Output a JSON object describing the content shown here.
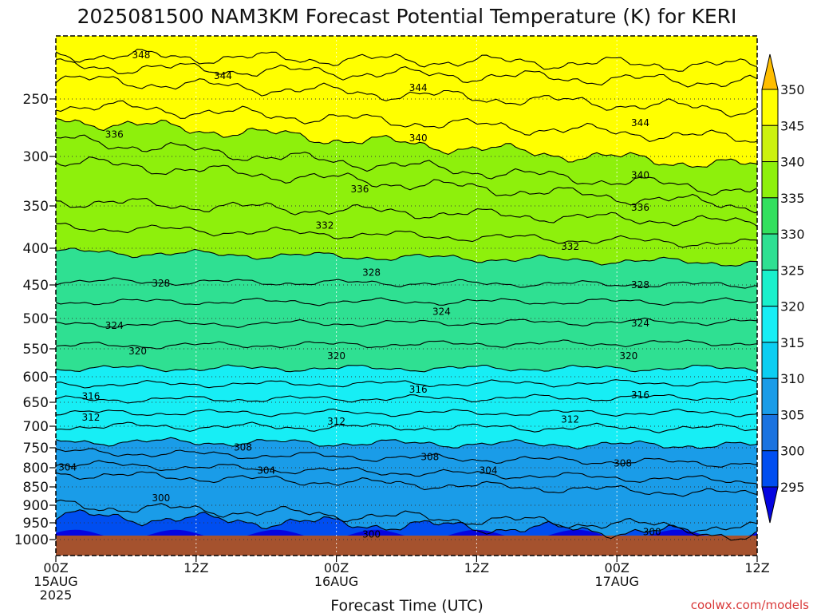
{
  "chart_data": {
    "type": "contour",
    "title": "2025081500 NAM3KM Forecast Potential Temperature (K) for KERI",
    "xlabel": "Forecast Time (UTC)",
    "credit": "coolwx.com/models",
    "y_axis": {
      "quantity": "pressure (hPa)",
      "range": [
        1000,
        200
      ],
      "ticks": [
        250,
        300,
        350,
        400,
        450,
        500,
        550,
        600,
        650,
        700,
        750,
        800,
        850,
        900,
        950,
        1000
      ],
      "tick_labels": [
        "250",
        "300",
        "350",
        "400",
        "450",
        "500",
        "550",
        "600",
        "650",
        "700",
        "750",
        "800",
        "850",
        "900",
        "950",
        "1000"
      ]
    },
    "x_axis": {
      "range_hours": [
        0,
        60
      ],
      "ticks": [
        {
          "hour": 0,
          "lines": [
            "00Z",
            "15AUG",
            "2025"
          ]
        },
        {
          "hour": 12,
          "lines": [
            "12Z"
          ]
        },
        {
          "hour": 24,
          "lines": [
            "00Z",
            "16AUG"
          ]
        },
        {
          "hour": 36,
          "lines": [
            "12Z"
          ]
        },
        {
          "hour": 48,
          "lines": [
            "00Z",
            "17AUG"
          ]
        },
        {
          "hour": 60,
          "lines": [
            "12Z"
          ]
        }
      ]
    },
    "grid": true,
    "colorbar": {
      "ticks": [
        "350",
        "345",
        "340",
        "335",
        "330",
        "325",
        "320",
        "315",
        "310",
        "305",
        "300",
        "295"
      ],
      "levels": [
        {
          "max": 350,
          "color": "#ffff00"
        },
        {
          "max": 345,
          "color": "#ccf20f"
        },
        {
          "max": 340,
          "color": "#8ef00c"
        },
        {
          "max": 335,
          "color": "#33e05e"
        },
        {
          "max": 330,
          "color": "#2fe092"
        },
        {
          "max": 325,
          "color": "#1af0cc"
        },
        {
          "max": 320,
          "color": "#17eef5"
        },
        {
          "max": 315,
          "color": "#0ccef2"
        },
        {
          "max": 310,
          "color": "#1a9ce8"
        },
        {
          "max": 305,
          "color": "#1a73e0"
        },
        {
          "max": 300,
          "color": "#004ef0"
        },
        {
          "max": 295,
          "color": "#0505e0"
        }
      ],
      "below_ground_color": "#a5522e"
    },
    "profile": [
      {
        "theta": 300,
        "p_start": 930,
        "p_end": 985,
        "amp": 10
      },
      {
        "theta": 302,
        "p_start": 900,
        "p_end": 968,
        "amp": 9
      },
      {
        "theta": 304,
        "p_start": 815,
        "p_end": 870,
        "amp": 7
      },
      {
        "theta": 306,
        "p_start": 790,
        "p_end": 835,
        "amp": 6
      },
      {
        "theta": 308,
        "p_start": 760,
        "p_end": 790,
        "amp": 6
      },
      {
        "theta": 310,
        "p_start": 735,
        "p_end": 745,
        "amp": 6
      },
      {
        "theta": 312,
        "p_start": 700,
        "p_end": 705,
        "amp": 6
      },
      {
        "theta": 314,
        "p_start": 672,
        "p_end": 672,
        "amp": 5
      },
      {
        "theta": 316,
        "p_start": 645,
        "p_end": 640,
        "amp": 5
      },
      {
        "theta": 318,
        "p_start": 615,
        "p_end": 612,
        "amp": 5
      },
      {
        "theta": 320,
        "p_start": 585,
        "p_end": 585,
        "amp": 5
      },
      {
        "theta": 322,
        "p_start": 545,
        "p_end": 540,
        "amp": 5
      },
      {
        "theta": 324,
        "p_start": 510,
        "p_end": 505,
        "amp": 5
      },
      {
        "theta": 326,
        "p_start": 475,
        "p_end": 475,
        "amp": 5
      },
      {
        "theta": 328,
        "p_start": 445,
        "p_end": 450,
        "amp": 5
      },
      {
        "theta": 330,
        "p_start": 405,
        "p_end": 420,
        "amp": 6
      },
      {
        "theta": 332,
        "p_start": 375,
        "p_end": 395,
        "amp": 7
      },
      {
        "theta": 334,
        "p_start": 345,
        "p_end": 370,
        "amp": 9
      },
      {
        "theta": 336,
        "p_start": 305,
        "p_end": 350,
        "amp": 10
      },
      {
        "theta": 338,
        "p_start": 285,
        "p_end": 335,
        "amp": 10
      },
      {
        "theta": 340,
        "p_start": 268,
        "p_end": 310,
        "amp": 10
      },
      {
        "theta": 342,
        "p_start": 255,
        "p_end": 285,
        "amp": 10
      },
      {
        "theta": 344,
        "p_start": 232,
        "p_end": 260,
        "amp": 10
      },
      {
        "theta": 346,
        "p_start": 220,
        "p_end": 235,
        "amp": 10
      },
      {
        "theta": 348,
        "p_start": 210,
        "p_end": 220,
        "amp": 10
      }
    ],
    "contour_labels": [
      {
        "text": "348",
        "hour": 7.3,
        "p": 210
      },
      {
        "text": "344",
        "hour": 14.3,
        "p": 229
      },
      {
        "text": "336",
        "hour": 5.0,
        "p": 281
      },
      {
        "text": "344",
        "hour": 31.0,
        "p": 240
      },
      {
        "text": "340",
        "hour": 31.0,
        "p": 284
      },
      {
        "text": "336",
        "hour": 26.0,
        "p": 333
      },
      {
        "text": "332",
        "hour": 23.0,
        "p": 373
      },
      {
        "text": "328",
        "hour": 9.0,
        "p": 448
      },
      {
        "text": "328",
        "hour": 27.0,
        "p": 433
      },
      {
        "text": "324",
        "hour": 5.0,
        "p": 512
      },
      {
        "text": "324",
        "hour": 33.0,
        "p": 490
      },
      {
        "text": "320",
        "hour": 7.0,
        "p": 554
      },
      {
        "text": "320",
        "hour": 24.0,
        "p": 563
      },
      {
        "text": "316",
        "hour": 3.0,
        "p": 638
      },
      {
        "text": "316",
        "hour": 31.0,
        "p": 625
      },
      {
        "text": "312",
        "hour": 3.0,
        "p": 682
      },
      {
        "text": "312",
        "hour": 24.0,
        "p": 690
      },
      {
        "text": "308",
        "hour": 16.0,
        "p": 749
      },
      {
        "text": "308",
        "hour": 32.0,
        "p": 773
      },
      {
        "text": "304",
        "hour": 1.0,
        "p": 799
      },
      {
        "text": "304",
        "hour": 18.0,
        "p": 807
      },
      {
        "text": "304",
        "hour": 37.0,
        "p": 807
      },
      {
        "text": "300",
        "hour": 9.0,
        "p": 880
      },
      {
        "text": "300",
        "hour": 27.0,
        "p": 985
      },
      {
        "text": "332",
        "hour": 44.0,
        "p": 398
      },
      {
        "text": "328",
        "hour": 50.0,
        "p": 450
      },
      {
        "text": "324",
        "hour": 50.0,
        "p": 508
      },
      {
        "text": "320",
        "hour": 49.0,
        "p": 563
      },
      {
        "text": "316",
        "hour": 50.0,
        "p": 636
      },
      {
        "text": "312",
        "hour": 44.0,
        "p": 686
      },
      {
        "text": "308",
        "hour": 48.5,
        "p": 789
      },
      {
        "text": "300",
        "hour": 51.0,
        "p": 977
      },
      {
        "text": "340",
        "hour": 50.0,
        "p": 319
      },
      {
        "text": "336",
        "hour": 50.0,
        "p": 352
      },
      {
        "text": "344",
        "hour": 50.0,
        "p": 271
      }
    ]
  }
}
